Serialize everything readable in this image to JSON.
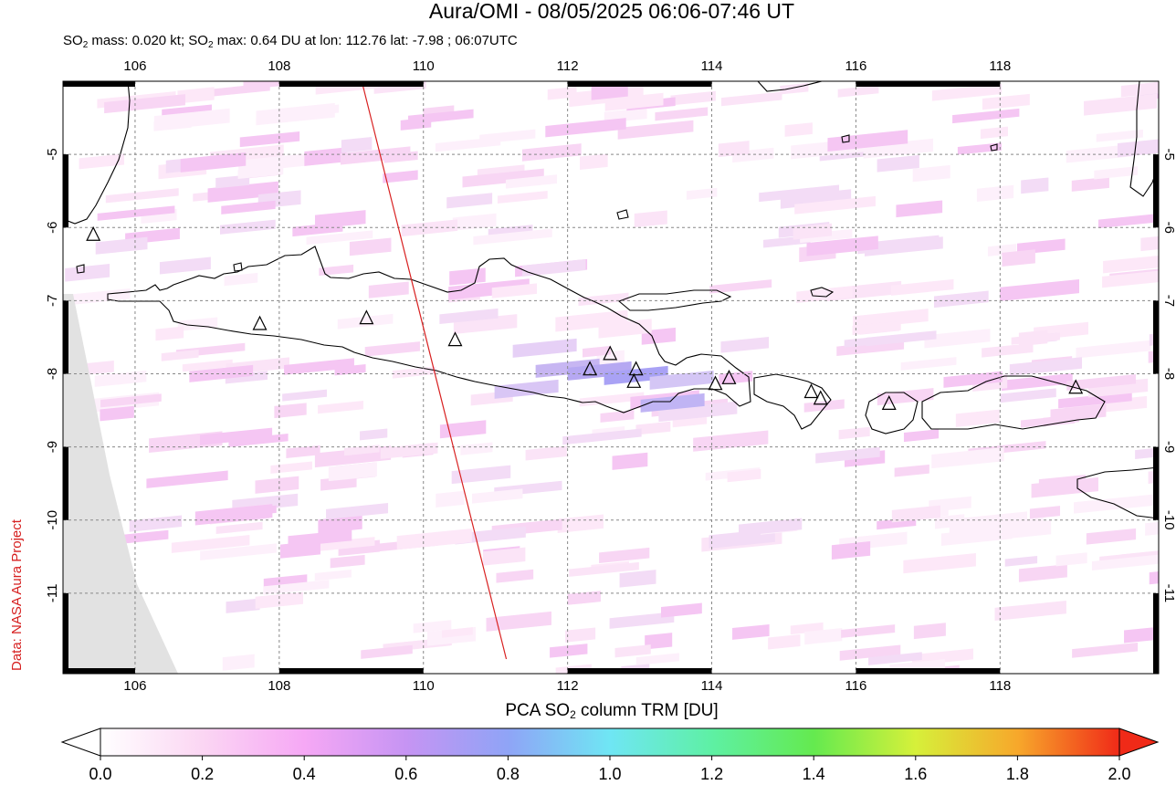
{
  "title": "Aura/OMI - 08/05/2025 06:06-07:46 UT",
  "subtitle": {
    "part1": "SO",
    "sub1": "2",
    "part2": " mass: 0.020 kt; SO",
    "sub2": "2",
    "part3": " max: 0.64 DU at lon: 112.76 lat: -7.98 ; 06:07UTC"
  },
  "credit": "Data: NASA Aura Project",
  "colorbar": {
    "title_part1": "PCA SO",
    "title_sub": "2",
    "title_part2": " column TRM [DU]",
    "ticks": [
      "0.0",
      "0.2",
      "0.4",
      "0.6",
      "0.8",
      "1.0",
      "1.2",
      "1.4",
      "1.6",
      "1.8",
      "2.0"
    ],
    "colors": [
      "#ffffff",
      "#fbd6f3",
      "#f6a8f5",
      "#c694f3",
      "#8fa4f6",
      "#6fe6f4",
      "#5ef0a4",
      "#64ea4f",
      "#d6f03a",
      "#f7a82b",
      "#f02a18"
    ]
  },
  "map": {
    "lon_ticks": [
      "106",
      "108",
      "110",
      "112",
      "114",
      "116",
      "118"
    ],
    "lat_ticks": [
      "-5",
      "-6",
      "-7",
      "-8",
      "-9",
      "-10",
      "-11"
    ],
    "lon_range": [
      105,
      120.2
    ],
    "lat_range": [
      -12.1,
      -4.0
    ],
    "colors": {
      "coast": "#000000",
      "track": "#d82020",
      "grid": "#888888",
      "nodata": "#e2e2e2"
    },
    "volcano_icon": "triangle-outline",
    "volcanoes": [
      {
        "lon": 105.42,
        "lat": -6.1
      },
      {
        "lon": 107.73,
        "lat": -7.32
      },
      {
        "lon": 109.21,
        "lat": -7.24
      },
      {
        "lon": 110.44,
        "lat": -7.54
      },
      {
        "lon": 112.31,
        "lat": -7.94
      },
      {
        "lon": 112.59,
        "lat": -7.73
      },
      {
        "lon": 112.95,
        "lat": -7.94
      },
      {
        "lon": 112.92,
        "lat": -8.11
      },
      {
        "lon": 114.05,
        "lat": -8.14
      },
      {
        "lon": 114.24,
        "lat": -8.06
      },
      {
        "lon": 115.38,
        "lat": -8.25
      },
      {
        "lon": 115.51,
        "lat": -8.34
      },
      {
        "lon": 116.46,
        "lat": -8.41
      },
      {
        "lon": 119.05,
        "lat": -8.19
      }
    ],
    "orbit_track": [
      {
        "lon": 109.15,
        "lat": -4.02
      },
      {
        "lon": 111.15,
        "lat": -11.9
      }
    ],
    "so2_max": {
      "value": 0.64,
      "lon": 112.76,
      "lat": -7.98
    }
  }
}
